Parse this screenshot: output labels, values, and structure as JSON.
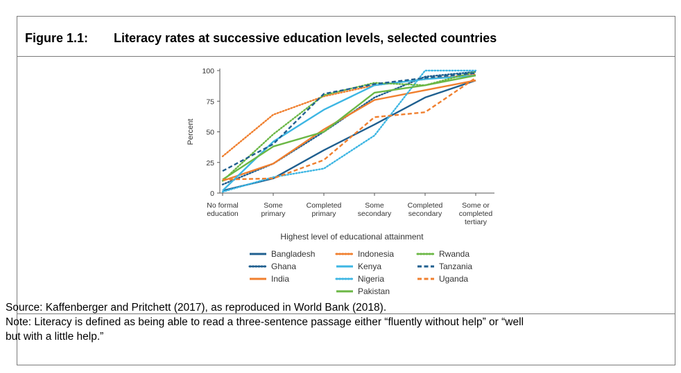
{
  "figure": {
    "label": "Figure 1.1:",
    "title": "Literacy rates at successive education levels, selected countries"
  },
  "source": "Source:  Kaffenberger and Pritchett (2017), as reproduced in World Bank (2018).",
  "note_line1": "Note: Literacy is defined as being able to read a three-sentence passage either “fluently without help” or “well",
  "note_line2": "but with a little help.”",
  "chart_data": {
    "type": "line",
    "xlabel": "Highest level of educational attainment",
    "ylabel": "Percent",
    "ylim": [
      0,
      100
    ],
    "yticks": [
      "0",
      "25",
      "50",
      "75",
      "100"
    ],
    "categories": [
      [
        "No formal",
        "education"
      ],
      [
        "Some",
        "primary"
      ],
      [
        "Completed",
        "primary"
      ],
      [
        "Some",
        "secondary"
      ],
      [
        "Completed",
        "secondary"
      ],
      [
        "Some or",
        "completed",
        "tertiary"
      ]
    ],
    "series": [
      {
        "name": "Bangladesh",
        "color": "#1f5f8f",
        "dash": "solid",
        "values": [
          2,
          12,
          35,
          56,
          78,
          92
        ]
      },
      {
        "name": "Ghana",
        "color": "#1f5f8f",
        "dash": "dotted",
        "values": [
          7,
          24,
          50,
          78,
          95,
          99
        ]
      },
      {
        "name": "India",
        "color": "#f07f2e",
        "dash": "solid",
        "values": [
          10,
          24,
          52,
          76,
          84,
          92
        ]
      },
      {
        "name": "Indonesia",
        "color": "#f07f2e",
        "dash": "dotted",
        "values": [
          30,
          64,
          79,
          88,
          93,
          97
        ]
      },
      {
        "name": "Kenya",
        "color": "#3db6e3",
        "dash": "solid",
        "values": [
          2,
          42,
          68,
          88,
          93,
          96
        ]
      },
      {
        "name": "Nigeria",
        "color": "#3db6e3",
        "dash": "dotted",
        "values": [
          1,
          13,
          20,
          47,
          100,
          100
        ]
      },
      {
        "name": "Pakistan",
        "color": "#6bb745",
        "dash": "solid",
        "values": [
          11,
          38,
          50,
          82,
          88,
          96
        ]
      },
      {
        "name": "Rwanda",
        "color": "#6bb745",
        "dash": "dotted",
        "values": [
          10,
          48,
          80,
          90,
          88,
          99
        ]
      },
      {
        "name": "Tanzania",
        "color": "#1f5f8f",
        "dash": "dashed",
        "values": [
          18,
          40,
          81,
          89,
          94,
          98
        ]
      },
      {
        "name": "Uganda",
        "color": "#f07f2e",
        "dash": "dashed",
        "values": [
          11,
          12,
          27,
          62,
          66,
          94
        ]
      }
    ]
  }
}
